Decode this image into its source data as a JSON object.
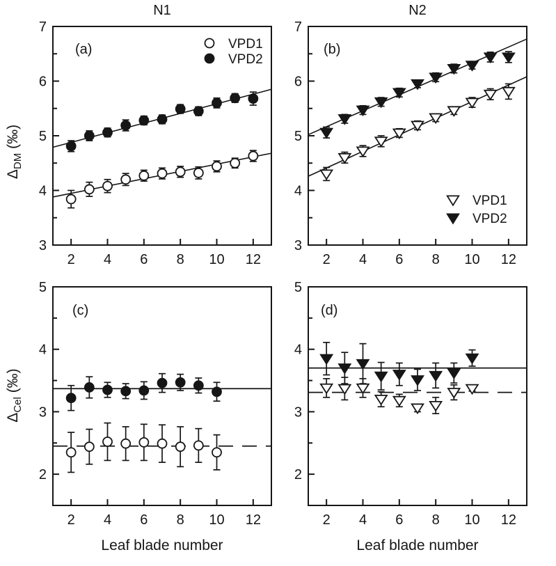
{
  "figure": {
    "column_titles": [
      "N1",
      "N2"
    ],
    "xlabel": "Leaf blade number",
    "ylabel_top": {
      "symbol": "Δ",
      "sub": "DM",
      "unit": " (‰)"
    },
    "ylabel_bottom": {
      "symbol": "Δ",
      "sub": "Cel",
      "unit": " (‰)"
    },
    "colors": {
      "foreground": "#161616",
      "background": "#ffffff"
    }
  },
  "legends": {
    "a": {
      "items": [
        {
          "marker": "circle-open",
          "label": "VPD1"
        },
        {
          "marker": "circle-filled",
          "label": "VPD2"
        }
      ]
    },
    "b": {
      "items": [
        {
          "marker": "triangle-down-open",
          "label": "VPD1"
        },
        {
          "marker": "triangle-down-filled",
          "label": "VPD2"
        }
      ]
    }
  },
  "chart_data": [
    {
      "id": "a",
      "letter": "(a)",
      "type": "scatter",
      "column": "N1",
      "ylabel": "Delta_DM (permil)",
      "xlim": [
        1,
        13
      ],
      "ylim": [
        3,
        7
      ],
      "x_ticks": [
        2,
        4,
        6,
        8,
        10,
        12
      ],
      "y_ticks": [
        3,
        4,
        5,
        6,
        7
      ],
      "y_minor_ticks": [
        3.5,
        4.5,
        5.5,
        6.5
      ],
      "series": [
        {
          "name": "VPD1",
          "marker": "circle-open",
          "x": [
            2,
            3,
            4,
            5,
            6,
            7,
            8,
            9,
            10,
            11,
            12
          ],
          "y": [
            3.84,
            4.02,
            4.08,
            4.2,
            4.27,
            4.31,
            4.34,
            4.32,
            4.44,
            4.5,
            4.63
          ],
          "err": [
            0.16,
            0.13,
            0.12,
            0.11,
            0.1,
            0.1,
            0.1,
            0.11,
            0.1,
            0.09,
            0.1
          ]
        },
        {
          "name": "VPD2",
          "marker": "circle-filled",
          "x": [
            2,
            3,
            4,
            5,
            6,
            7,
            8,
            9,
            10,
            11,
            12
          ],
          "y": [
            4.81,
            5.0,
            5.06,
            5.19,
            5.28,
            5.3,
            5.49,
            5.45,
            5.6,
            5.69,
            5.68
          ],
          "err": [
            0.1,
            0.09,
            0.08,
            0.1,
            0.08,
            0.08,
            0.08,
            0.08,
            0.09,
            0.08,
            0.12
          ]
        }
      ],
      "fit_lines": [
        {
          "series": "VPD1",
          "style": "solid",
          "x": [
            1,
            13
          ],
          "y": [
            3.88,
            4.68
          ]
        },
        {
          "series": "VPD2",
          "style": "solid",
          "x": [
            1,
            13
          ],
          "y": [
            4.79,
            5.85
          ]
        }
      ],
      "ref_lines": []
    },
    {
      "id": "b",
      "letter": "(b)",
      "type": "scatter",
      "column": "N2",
      "ylabel": "Delta_DM (permil)",
      "xlim": [
        1,
        13
      ],
      "ylim": [
        3,
        7
      ],
      "x_ticks": [
        2,
        4,
        6,
        8,
        10,
        12
      ],
      "y_ticks": [
        3,
        4,
        5,
        6,
        7
      ],
      "y_minor_ticks": [
        3.5,
        4.5,
        5.5,
        6.5
      ],
      "series": [
        {
          "name": "VPD1",
          "marker": "triangle-down-open",
          "x": [
            2,
            3,
            4,
            5,
            6,
            7,
            8,
            9,
            10,
            11,
            12
          ],
          "y": [
            4.3,
            4.6,
            4.72,
            4.9,
            5.05,
            5.19,
            5.33,
            5.46,
            5.61,
            5.76,
            5.81
          ],
          "err": [
            0.12,
            0.1,
            0.1,
            0.1,
            0.08,
            0.08,
            0.07,
            0.07,
            0.09,
            0.1,
            0.14
          ]
        },
        {
          "name": "VPD2",
          "marker": "triangle-down-filled",
          "x": [
            2,
            3,
            4,
            5,
            6,
            7,
            8,
            9,
            10,
            11,
            12
          ],
          "y": [
            5.06,
            5.31,
            5.47,
            5.62,
            5.79,
            5.95,
            6.07,
            6.23,
            6.29,
            6.44,
            6.44
          ],
          "err": [
            0.1,
            0.08,
            0.08,
            0.08,
            0.08,
            0.07,
            0.08,
            0.08,
            0.07,
            0.09,
            0.1
          ]
        }
      ],
      "fit_lines": [
        {
          "series": "VPD1",
          "style": "solid",
          "x": [
            1,
            13
          ],
          "y": [
            4.26,
            6.08
          ]
        },
        {
          "series": "VPD2",
          "style": "solid",
          "x": [
            1,
            13
          ],
          "y": [
            5.02,
            6.77
          ]
        }
      ],
      "ref_lines": []
    },
    {
      "id": "c",
      "letter": "(c)",
      "type": "scatter",
      "column": "N1",
      "ylabel": "Delta_Cel (permil)",
      "xlim": [
        1,
        13
      ],
      "ylim": [
        1.5,
        5
      ],
      "x_ticks": [
        2,
        4,
        6,
        8,
        10,
        12
      ],
      "y_ticks": [
        2,
        3,
        4,
        5
      ],
      "y_minor_ticks": [
        2.5,
        3.5,
        4.5
      ],
      "series": [
        {
          "name": "VPD1",
          "marker": "circle-open",
          "x": [
            2,
            3,
            4,
            5,
            6,
            7,
            8,
            9,
            10
          ],
          "y": [
            2.35,
            2.44,
            2.52,
            2.49,
            2.51,
            2.49,
            2.44,
            2.46,
            2.35
          ],
          "err": [
            0.32,
            0.28,
            0.3,
            0.27,
            0.29,
            0.3,
            0.32,
            0.27,
            0.28
          ]
        },
        {
          "name": "VPD2",
          "marker": "circle-filled",
          "x": [
            2,
            3,
            4,
            5,
            6,
            7,
            8,
            9,
            10
          ],
          "y": [
            3.22,
            3.39,
            3.35,
            3.33,
            3.34,
            3.46,
            3.47,
            3.42,
            3.32
          ],
          "err": [
            0.2,
            0.17,
            0.12,
            0.12,
            0.14,
            0.15,
            0.13,
            0.12,
            0.15
          ]
        }
      ],
      "fit_lines": [],
      "ref_lines": [
        {
          "series": "VPD2",
          "style": "solid",
          "y": 3.37
        },
        {
          "series": "VPD1",
          "style": "dashed",
          "y": 2.45
        }
      ]
    },
    {
      "id": "d",
      "letter": "(d)",
      "type": "scatter",
      "column": "N2",
      "ylabel": "Delta_Cel (permil)",
      "xlim": [
        1,
        13
      ],
      "ylim": [
        1.5,
        5
      ],
      "x_ticks": [
        2,
        4,
        6,
        8,
        10,
        12
      ],
      "y_ticks": [
        2,
        3,
        4,
        5
      ],
      "y_minor_ticks": [
        2.5,
        3.5,
        4.5
      ],
      "series": [
        {
          "name": "VPD1",
          "marker": "triangle-down-open",
          "x": [
            2,
            3,
            4,
            5,
            6,
            7,
            8,
            9,
            10
          ],
          "y": [
            3.38,
            3.37,
            3.38,
            3.2,
            3.18,
            3.06,
            3.1,
            3.31,
            3.37
          ],
          "err": [
            0.15,
            0.18,
            0.15,
            0.12,
            0.1,
            0.06,
            0.13,
            0.12,
            0.04
          ]
        },
        {
          "name": "VPD2",
          "marker": "triangle-down-filled",
          "x": [
            2,
            3,
            4,
            5,
            6,
            7,
            8,
            9,
            10
          ],
          "y": [
            3.85,
            3.7,
            3.77,
            3.57,
            3.6,
            3.51,
            3.58,
            3.62,
            3.86
          ],
          "err": [
            0.26,
            0.25,
            0.32,
            0.22,
            0.18,
            0.17,
            0.2,
            0.16,
            0.13
          ]
        }
      ],
      "fit_lines": [],
      "ref_lines": [
        {
          "series": "VPD2",
          "style": "solid",
          "y": 3.7
        },
        {
          "series": "VPD1",
          "style": "dashed",
          "y": 3.31
        }
      ]
    }
  ]
}
